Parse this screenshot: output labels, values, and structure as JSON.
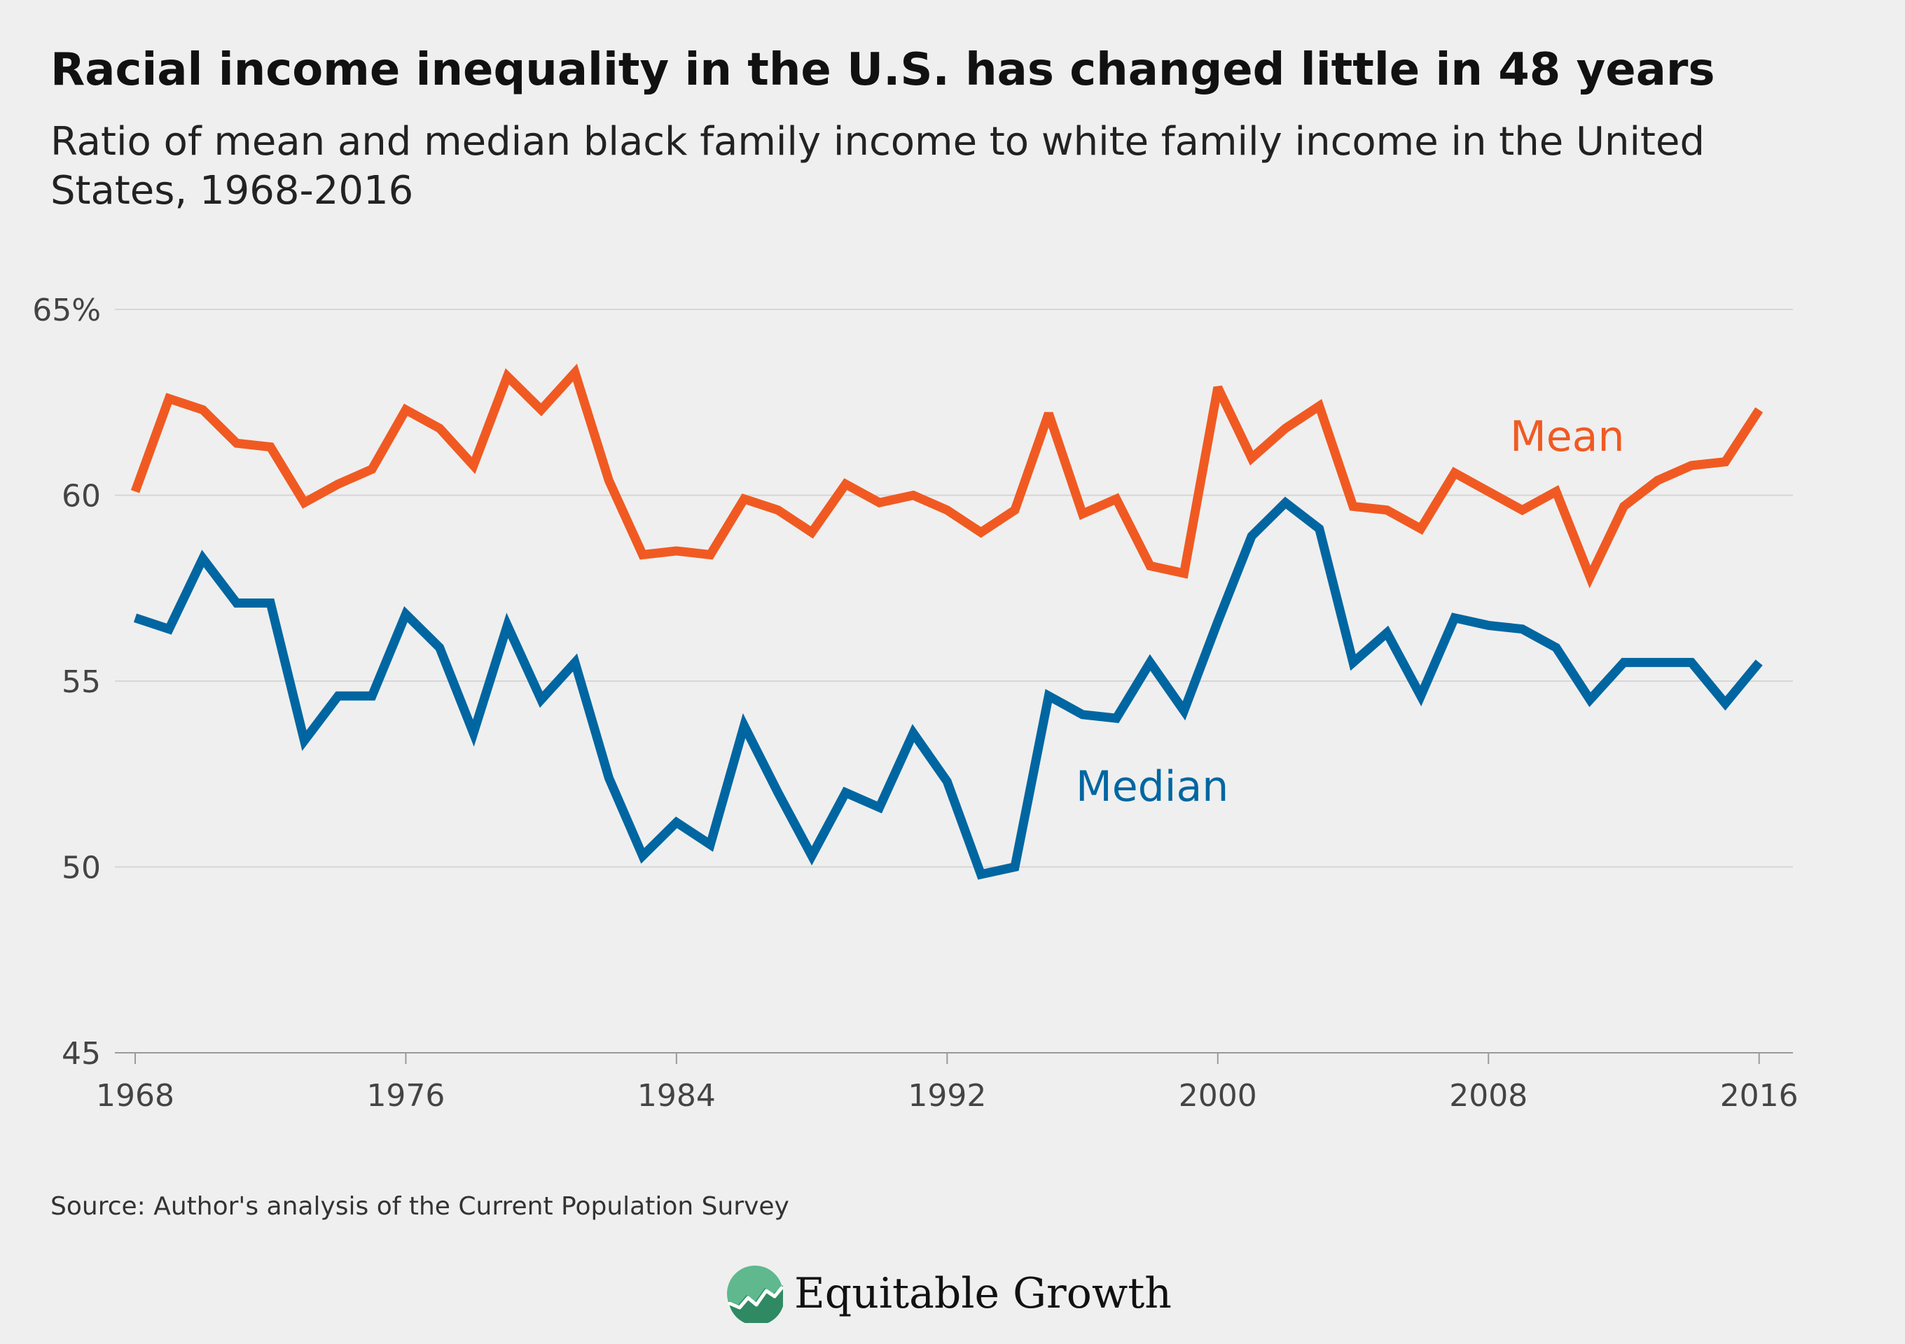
{
  "title": "Racial income inequality in the U.S. has changed little in 48 years",
  "subtitle": "Ratio of mean and median black family income to white family income in the United States, 1968-2016",
  "source": "Source: Author's analysis of the Current Population Survey",
  "logo": {
    "icon": "equitable-growth-logo-icon",
    "text": "Equitable Growth"
  },
  "colors": {
    "background": "#efefef",
    "mean": "#f05a22",
    "median": "#0066a1",
    "grid": "#d6d6d6",
    "axis_text": "#444444",
    "logo_green": "#5fb88e"
  },
  "chart_data": {
    "type": "line",
    "x": [
      1968,
      1969,
      1970,
      1971,
      1972,
      1973,
      1974,
      1975,
      1976,
      1977,
      1978,
      1979,
      1980,
      1981,
      1982,
      1983,
      1984,
      1985,
      1986,
      1987,
      1988,
      1989,
      1990,
      1991,
      1992,
      1993,
      1994,
      1995,
      1996,
      1997,
      1998,
      1999,
      2000,
      2001,
      2002,
      2003,
      2004,
      2005,
      2006,
      2007,
      2008,
      2009,
      2010,
      2011,
      2012,
      2013,
      2014,
      2015,
      2016
    ],
    "series": [
      {
        "name": "Mean",
        "color": "#f05a22",
        "values": [
          60.1,
          62.6,
          62.3,
          61.4,
          61.3,
          59.8,
          60.3,
          60.7,
          62.3,
          61.8,
          60.8,
          63.2,
          62.3,
          63.3,
          60.4,
          58.4,
          58.5,
          58.4,
          59.9,
          59.6,
          59.0,
          60.3,
          59.8,
          60.0,
          59.6,
          59.0,
          59.6,
          62.2,
          59.5,
          59.9,
          58.1,
          57.9,
          62.9,
          61.0,
          61.8,
          62.4,
          59.7,
          59.6,
          59.1,
          60.6,
          60.1,
          59.6,
          60.1,
          57.8,
          59.7,
          60.4,
          60.8,
          60.9,
          62.3
        ]
      },
      {
        "name": "Median",
        "color": "#0066a1",
        "values": [
          56.7,
          56.4,
          58.3,
          57.1,
          57.1,
          53.4,
          54.6,
          54.6,
          56.8,
          55.9,
          53.6,
          56.5,
          54.5,
          55.5,
          52.4,
          50.3,
          51.2,
          50.6,
          53.8,
          52.0,
          50.3,
          52.0,
          51.6,
          53.6,
          52.3,
          49.8,
          50.0,
          54.6,
          54.1,
          54.0,
          55.5,
          54.2,
          56.6,
          58.9,
          59.8,
          59.1,
          55.5,
          56.3,
          54.6,
          56.7,
          56.5,
          56.4,
          55.9,
          54.5,
          55.5,
          55.5,
          55.5,
          54.4,
          55.5
        ]
      }
    ],
    "xlim": [
      1967.4,
      2017.0
    ],
    "ylim": [
      45,
      65
    ],
    "x_ticks": [
      1968,
      1976,
      1984,
      1992,
      2000,
      2008,
      2016
    ],
    "x_tick_labels": [
      "1968",
      "1976",
      "1984",
      "1992",
      "2000",
      "2008",
      "2016"
    ],
    "y_ticks": [
      45,
      50,
      55,
      60,
      65
    ],
    "y_tick_labels": [
      "45",
      "50",
      "55",
      "60",
      "65%"
    ],
    "grid": true,
    "legend": "inline labels next to lines",
    "xlabel": "",
    "ylabel": ""
  }
}
